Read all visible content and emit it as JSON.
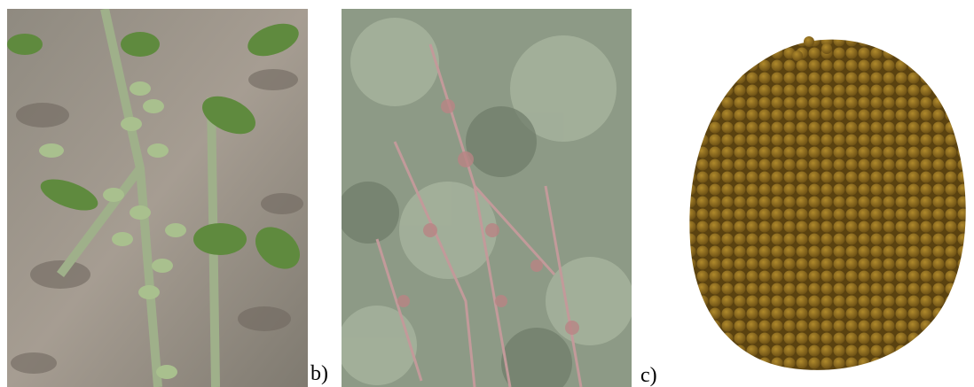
{
  "figure": {
    "panel_labels": [
      "b)",
      "c)"
    ]
  }
}
